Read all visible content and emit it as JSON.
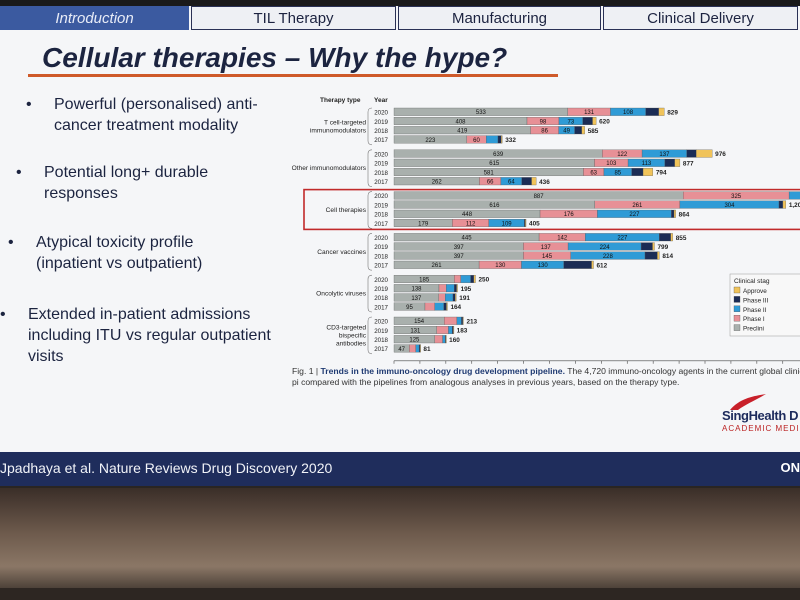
{
  "tabs": [
    {
      "label": "Introduction",
      "active": true
    },
    {
      "label": "TIL Therapy",
      "active": false
    },
    {
      "label": "Manufacturing",
      "active": false
    },
    {
      "label": "Clinical Delivery",
      "active": false
    }
  ],
  "slide_title": "Cellular therapies – Why the hype?",
  "bullets": [
    {
      "dot": "•",
      "text": "Powerful (personalised) anti-cancer treatment modality"
    },
    {
      "dot": "•",
      "text": "Potential long+ durable responses"
    },
    {
      "dot": "•",
      "text": "Atypical toxicity profile (inpatient vs outpatient)"
    },
    {
      "dot": "•",
      "text": "Extended in-patient admissions including ITU vs regular outpatient visits"
    }
  ],
  "chart_data": {
    "type": "bar",
    "orientation": "horizontal-stacked",
    "col_headers": {
      "therapy": "Therapy type",
      "year": "Year"
    },
    "xlabel": "Number of active immuno-oncology agents",
    "xticks": [
      0,
      100,
      200,
      300,
      400,
      500,
      600,
      700,
      800,
      900,
      "1,000",
      "1,100",
      "1,200",
      "1,300",
      "1,400",
      "1,500",
      "1,6"
    ],
    "xlim": [
      0,
      1600
    ],
    "legend_title": "Clinical stag",
    "legend": [
      {
        "name": "Approve",
        "color": "#f0c35a"
      },
      {
        "name": "Phase III",
        "color": "#1b2c55"
      },
      {
        "name": "Phase II",
        "color": "#2f9bd6"
      },
      {
        "name": "Phase I",
        "color": "#e79096"
      },
      {
        "name": "Preclini",
        "color": "#a9b0ad"
      }
    ],
    "groups": [
      {
        "name": "T cell-targeted immunomodulators",
        "rows": [
          {
            "year": "2020",
            "pre": 533,
            "p1": 131,
            "p2": 108,
            "p3": 40,
            "ap": 17,
            "total": "829"
          },
          {
            "year": "2019",
            "pre": 408,
            "p1": 98,
            "p2": 73,
            "p3": 30,
            "ap": 11,
            "total": "620"
          },
          {
            "year": "2018",
            "pre": 419,
            "p1": 86,
            "p2": 49,
            "p3": 22,
            "ap": 9,
            "total": "585"
          },
          {
            "year": "2017",
            "pre": 223,
            "p1": 60,
            "p2": 36,
            "p3": 10,
            "ap": 3,
            "total": "332"
          }
        ]
      },
      {
        "name": "Other immunomodulators",
        "rows": [
          {
            "year": "2020",
            "pre": 639,
            "p1": 122,
            "p2": 137,
            "p3": 29,
            "ap": 49,
            "total": "976"
          },
          {
            "year": "2019",
            "pre": 615,
            "p1": 103,
            "p2": 113,
            "p3": 30,
            "ap": 16,
            "total": "877"
          },
          {
            "year": "2018",
            "pre": 581,
            "p1": 63,
            "p2": 85,
            "p3": 35,
            "ap": 30,
            "total": "794"
          },
          {
            "year": "2017",
            "pre": 262,
            "p1": 66,
            "p2": 64,
            "p3": 30,
            "ap": 14,
            "total": "436"
          }
        ]
      },
      {
        "name": "Cell therapies",
        "highlight": true,
        "rows": [
          {
            "year": "2020",
            "pre": 887,
            "p1": 325,
            "p2": 363,
            "p3": 10,
            "ap": 5,
            "total": "1,59"
          },
          {
            "year": "2019",
            "pre": 616,
            "p1": 261,
            "p2": 304,
            "p3": 12,
            "ap": 9,
            "total": "1,202"
          },
          {
            "year": "2018",
            "pre": 448,
            "p1": 176,
            "p2": 227,
            "p3": 8,
            "ap": 5,
            "total": "864"
          },
          {
            "year": "2017",
            "pre": 179,
            "p1": 112,
            "p2": 109,
            "p3": 3,
            "ap": 2,
            "total": "405"
          }
        ]
      },
      {
        "name": "Cancer vaccines",
        "rows": [
          {
            "year": "2020",
            "pre": 445,
            "p1": 142,
            "p2": 227,
            "p3": 35,
            "ap": 6,
            "total": "855"
          },
          {
            "year": "2019",
            "pre": 397,
            "p1": 137,
            "p2": 224,
            "p3": 35,
            "ap": 6,
            "total": "799"
          },
          {
            "year": "2018",
            "pre": 397,
            "p1": 145,
            "p2": 228,
            "p3": 38,
            "ap": 6,
            "total": "814"
          },
          {
            "year": "2017",
            "pre": 261,
            "p1": 130,
            "p2": 130,
            "p3": 85,
            "ap": 6,
            "total": "612"
          }
        ]
      },
      {
        "name": "Oncolytic viruses",
        "rows": [
          {
            "year": "2020",
            "pre": 185,
            "p1": 20,
            "p2": 30,
            "p3": 10,
            "ap": 5,
            "total": "250"
          },
          {
            "year": "2019",
            "pre": 138,
            "p1": 22,
            "p2": 25,
            "p3": 7,
            "ap": 3,
            "total": "195"
          },
          {
            "year": "2018",
            "pre": 137,
            "p1": 20,
            "p2": 24,
            "p3": 7,
            "ap": 3,
            "total": "191"
          },
          {
            "year": "2017",
            "pre": 95,
            "p1": 30,
            "p2": 28,
            "p3": 8,
            "ap": 3,
            "total": "164"
          }
        ]
      },
      {
        "name": "CD3-targeted bispecific antibodies",
        "rows": [
          {
            "year": "2020",
            "pre": 154,
            "p1": 39,
            "p2": 14,
            "p3": 4,
            "ap": 2,
            "total": "213"
          },
          {
            "year": "2019",
            "pre": 131,
            "p1": 36,
            "p2": 12,
            "p3": 3,
            "ap": 1,
            "total": "183"
          },
          {
            "year": "2018",
            "pre": 125,
            "p1": 24,
            "p2": 8,
            "p3": 2,
            "ap": 1,
            "total": "160"
          },
          {
            "year": "2017",
            "pre": 47,
            "p1": 20,
            "p2": 10,
            "p3": 3,
            "ap": 1,
            "total": "81"
          }
        ]
      }
    ]
  },
  "caption": {
    "fig": "Fig. 1 |",
    "bold": "Trends in the immuno-oncology drug development pipeline.",
    "text": "The 4,720 immuno-oncology agents in the current global clinical pi compared with the pipelines from analogous analyses in previous years, based on the therapy type."
  },
  "logo": {
    "name": "SingHealth D",
    "sub": "ACADEMIC MEDI"
  },
  "footer": {
    "citation": "Jpadhaya et al. Nature Reviews Drug Discovery 2020",
    "right": "ON"
  },
  "colors": {
    "navy": "#1f2d5c",
    "accent": "#cf5a2a",
    "tab_active": "#3b5aa0"
  }
}
